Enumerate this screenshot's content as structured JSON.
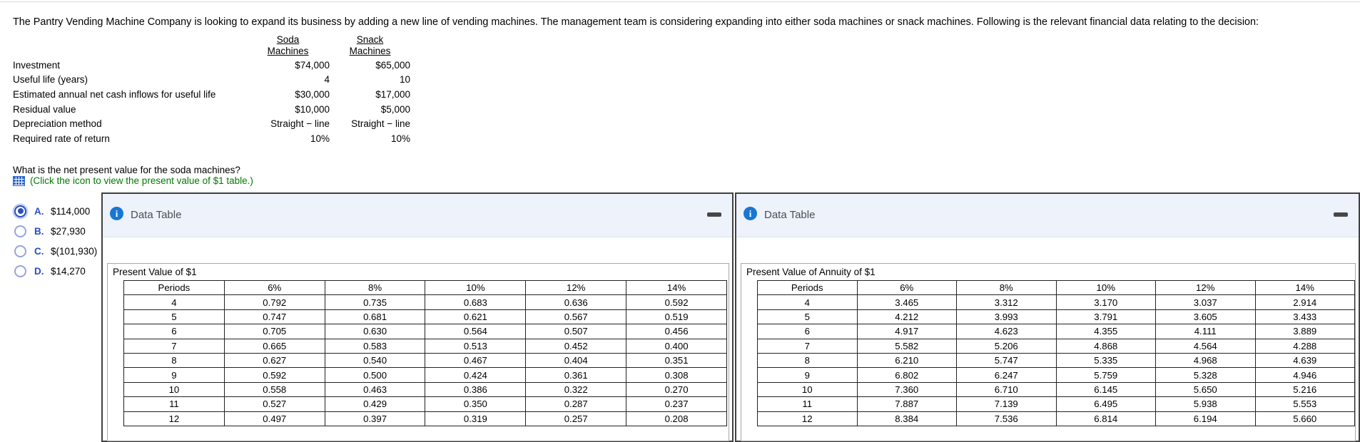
{
  "intro": "The Pantry Vending Machine Company is looking to expand its business by adding a new line of vending machines. The management team is considering expanding into either soda machines or snack machines. Following is the relevant financial data relating to the decision:",
  "fin_table": {
    "columns": [
      {
        "line1": "Soda",
        "line2": "Machines"
      },
      {
        "line1": "Snack",
        "line2": "Machines"
      }
    ],
    "rows": [
      {
        "label": "Investment",
        "soda": "$74,000",
        "snack": "$65,000"
      },
      {
        "label": "Useful life (years)",
        "soda": "4",
        "snack": "10"
      },
      {
        "label": "Estimated annual net cash inflows for useful life",
        "soda": "$30,000",
        "snack": "$17,000"
      },
      {
        "label": "Residual value",
        "soda": "$10,000",
        "snack": "$5,000"
      },
      {
        "label": "Depreciation method",
        "soda": "Straight − line",
        "snack": "Straight − line"
      },
      {
        "label": "Required rate of return",
        "soda": "10%",
        "snack": "10%"
      }
    ]
  },
  "question": "What is the net present value for the soda machines?",
  "table_link_text": "(Click the icon to view the present value of $1 table.)",
  "options": [
    {
      "letter": "A.",
      "value": "$114,000",
      "selected": true
    },
    {
      "letter": "B.",
      "value": "$27,930",
      "selected": false
    },
    {
      "letter": "C.",
      "value": "$(101,930)",
      "selected": false
    },
    {
      "letter": "D.",
      "value": "$14,270",
      "selected": false
    }
  ],
  "dialogs": [
    {
      "title": "Data Table",
      "table": {
        "title": "Present Value of $1",
        "headers": [
          "Periods",
          "6%",
          "8%",
          "10%",
          "12%",
          "14%"
        ],
        "rows": [
          [
            "4",
            "0.792",
            "0.735",
            "0.683",
            "0.636",
            "0.592"
          ],
          [
            "5",
            "0.747",
            "0.681",
            "0.621",
            "0.567",
            "0.519"
          ],
          [
            "6",
            "0.705",
            "0.630",
            "0.564",
            "0.507",
            "0.456"
          ],
          [
            "7",
            "0.665",
            "0.583",
            "0.513",
            "0.452",
            "0.400"
          ],
          [
            "8",
            "0.627",
            "0.540",
            "0.467",
            "0.404",
            "0.351"
          ],
          [
            "9",
            "0.592",
            "0.500",
            "0.424",
            "0.361",
            "0.308"
          ],
          [
            "10",
            "0.558",
            "0.463",
            "0.386",
            "0.322",
            "0.270"
          ],
          [
            "11",
            "0.527",
            "0.429",
            "0.350",
            "0.287",
            "0.237"
          ],
          [
            "12",
            "0.497",
            "0.397",
            "0.319",
            "0.257",
            "0.208"
          ]
        ]
      }
    },
    {
      "title": "Data Table",
      "table": {
        "title": "Present Value of Annuity of $1",
        "headers": [
          "Periods",
          "6%",
          "8%",
          "10%",
          "12%",
          "14%"
        ],
        "rows": [
          [
            "4",
            "3.465",
            "3.312",
            "3.170",
            "3.037",
            "2.914"
          ],
          [
            "5",
            "4.212",
            "3.993",
            "3.791",
            "3.605",
            "3.433"
          ],
          [
            "6",
            "4.917",
            "4.623",
            "4.355",
            "4.111",
            "3.889"
          ],
          [
            "7",
            "5.582",
            "5.206",
            "4.868",
            "4.564",
            "4.288"
          ],
          [
            "8",
            "6.210",
            "5.747",
            "5.335",
            "4.968",
            "4.639"
          ],
          [
            "9",
            "6.802",
            "6.247",
            "5.759",
            "5.328",
            "4.946"
          ],
          [
            "10",
            "7.360",
            "6.710",
            "6.145",
            "5.650",
            "5.216"
          ],
          [
            "11",
            "7.887",
            "7.139",
            "6.495",
            "5.938",
            "5.553"
          ],
          [
            "12",
            "8.384",
            "7.536",
            "6.814",
            "6.194",
            "5.660"
          ]
        ]
      }
    }
  ],
  "icons": {
    "info_glyph": "i",
    "info_color": "#1877d2",
    "table_grid_color": "#2e66c9",
    "minimize_color": "#474747"
  },
  "colors": {
    "link_green": "#007b00",
    "option_blue": "#2b4ec0",
    "dialog_header_bg": "#edf2fb",
    "dialog_border": "#404040"
  }
}
